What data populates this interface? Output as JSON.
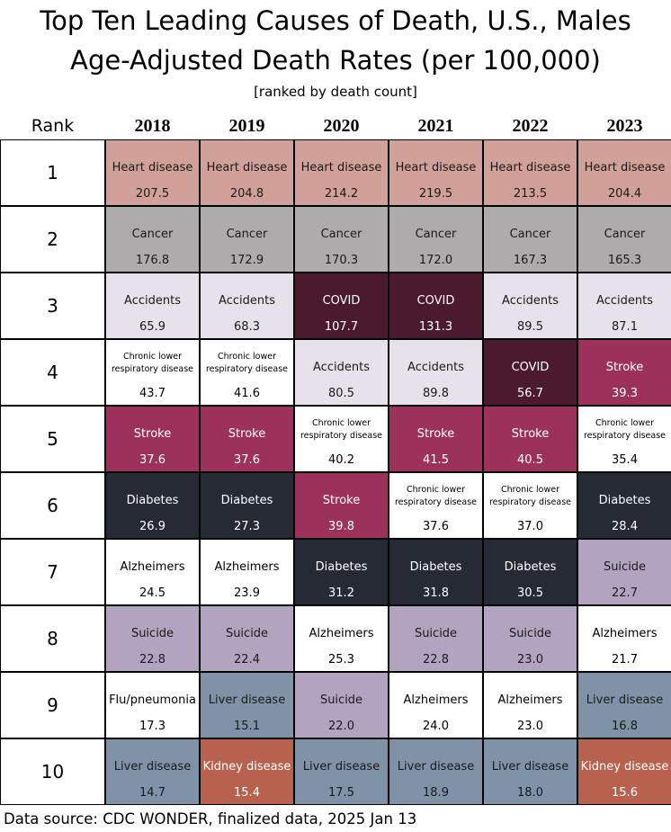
{
  "chart_data": {
    "type": "table",
    "title": "Top Ten Leading Causes of Death, U.S., Males",
    "subtitle": "Age-Adjusted Death Rates (per 100,000)",
    "note": "[ranked by death count]",
    "rank_label": "Rank",
    "years": [
      "2018",
      "2019",
      "2020",
      "2021",
      "2022",
      "2023"
    ],
    "ranks": [
      "1",
      "2",
      "3",
      "4",
      "5",
      "6",
      "7",
      "8",
      "9",
      "10"
    ],
    "cells": [
      [
        {
          "cause": "Heart disease",
          "rate": "207.5"
        },
        {
          "cause": "Cancer",
          "rate": "176.8"
        },
        {
          "cause": "Accidents",
          "rate": "65.9"
        },
        {
          "cause": "Chronic lower respiratory disease",
          "rate": "43.7"
        },
        {
          "cause": "Stroke",
          "rate": "37.6"
        },
        {
          "cause": "Diabetes",
          "rate": "26.9"
        },
        {
          "cause": "Alzheimers",
          "rate": "24.5"
        },
        {
          "cause": "Suicide",
          "rate": "22.8"
        },
        {
          "cause": "Flu/pneumonia",
          "rate": "17.3"
        },
        {
          "cause": "Liver disease",
          "rate": "14.7"
        }
      ],
      [
        {
          "cause": "Heart disease",
          "rate": "204.8"
        },
        {
          "cause": "Cancer",
          "rate": "172.9"
        },
        {
          "cause": "Accidents",
          "rate": "68.3"
        },
        {
          "cause": "Chronic lower respiratory disease",
          "rate": "41.6"
        },
        {
          "cause": "Stroke",
          "rate": "37.6"
        },
        {
          "cause": "Diabetes",
          "rate": "27.3"
        },
        {
          "cause": "Alzheimers",
          "rate": "23.9"
        },
        {
          "cause": "Suicide",
          "rate": "22.4"
        },
        {
          "cause": "Liver disease",
          "rate": "15.1"
        },
        {
          "cause": "Kidney disease",
          "rate": "15.4"
        }
      ],
      [
        {
          "cause": "Heart disease",
          "rate": "214.2"
        },
        {
          "cause": "Cancer",
          "rate": "170.3"
        },
        {
          "cause": "COVID",
          "rate": "107.7"
        },
        {
          "cause": "Accidents",
          "rate": "80.5"
        },
        {
          "cause": "Chronic lower respiratory disease",
          "rate": "40.2"
        },
        {
          "cause": "Stroke",
          "rate": "39.8"
        },
        {
          "cause": "Diabetes",
          "rate": "31.2"
        },
        {
          "cause": "Alzheimers",
          "rate": "25.3"
        },
        {
          "cause": "Suicide",
          "rate": "22.0"
        },
        {
          "cause": "Liver disease",
          "rate": "17.5"
        }
      ],
      [
        {
          "cause": "Heart disease",
          "rate": "219.5"
        },
        {
          "cause": "Cancer",
          "rate": "172.0"
        },
        {
          "cause": "COVID",
          "rate": "131.3"
        },
        {
          "cause": "Accidents",
          "rate": "89.8"
        },
        {
          "cause": "Stroke",
          "rate": "41.5"
        },
        {
          "cause": "Chronic lower respiratory disease",
          "rate": "37.6"
        },
        {
          "cause": "Diabetes",
          "rate": "31.8"
        },
        {
          "cause": "Suicide",
          "rate": "22.8"
        },
        {
          "cause": "Alzheimers",
          "rate": "24.0"
        },
        {
          "cause": "Liver disease",
          "rate": "18.9"
        }
      ],
      [
        {
          "cause": "Heart disease",
          "rate": "213.5"
        },
        {
          "cause": "Cancer",
          "rate": "167.3"
        },
        {
          "cause": "Accidents",
          "rate": "89.5"
        },
        {
          "cause": "COVID",
          "rate": "56.7"
        },
        {
          "cause": "Stroke",
          "rate": "40.5"
        },
        {
          "cause": "Chronic lower respiratory disease",
          "rate": "37.0"
        },
        {
          "cause": "Diabetes",
          "rate": "30.5"
        },
        {
          "cause": "Suicide",
          "rate": "23.0"
        },
        {
          "cause": "Alzheimers",
          "rate": "23.0"
        },
        {
          "cause": "Liver disease",
          "rate": "18.0"
        }
      ],
      [
        {
          "cause": "Heart disease",
          "rate": "204.4"
        },
        {
          "cause": "Cancer",
          "rate": "165.3"
        },
        {
          "cause": "Accidents",
          "rate": "87.1"
        },
        {
          "cause": "Stroke",
          "rate": "39.3"
        },
        {
          "cause": "Chronic lower respiratory disease",
          "rate": "35.4"
        },
        {
          "cause": "Diabetes",
          "rate": "28.4"
        },
        {
          "cause": "Suicide",
          "rate": "22.7"
        },
        {
          "cause": "Alzheimers",
          "rate": "21.7"
        },
        {
          "cause": "Liver disease",
          "rate": "16.8"
        },
        {
          "cause": "Kidney disease",
          "rate": "15.6"
        }
      ]
    ],
    "cause_colors": {
      "Heart disease": {
        "bg": "#d1a199",
        "fg": "#1a1a1a"
      },
      "Cancer": {
        "bg": "#aeabac",
        "fg": "#1a1a1a"
      },
      "Accidents": {
        "bg": "#e7e1ec",
        "fg": "#1a1a1a"
      },
      "COVID": {
        "bg": "#4c1a2e",
        "fg": "#ffffff"
      },
      "Chronic lower respiratory disease": {
        "bg": "#ffffff",
        "fg": "#000000"
      },
      "Stroke": {
        "bg": "#9c325c",
        "fg": "#ffffff"
      },
      "Diabetes": {
        "bg": "#252a35",
        "fg": "#ffffff"
      },
      "Alzheimers": {
        "bg": "#ffffff",
        "fg": "#000000"
      },
      "Suicide": {
        "bg": "#b2a4c1",
        "fg": "#1a1a1a"
      },
      "Flu/pneumonia": {
        "bg": "#ffffff",
        "fg": "#000000"
      },
      "Liver disease": {
        "bg": "#8092a8",
        "fg": "#1a1a1a"
      },
      "Kidney disease": {
        "bg": "#b8614f",
        "fg": "#ffffff"
      }
    }
  },
  "footer": "Data source: CDC WONDER, finalized data, 2025 Jan 13"
}
